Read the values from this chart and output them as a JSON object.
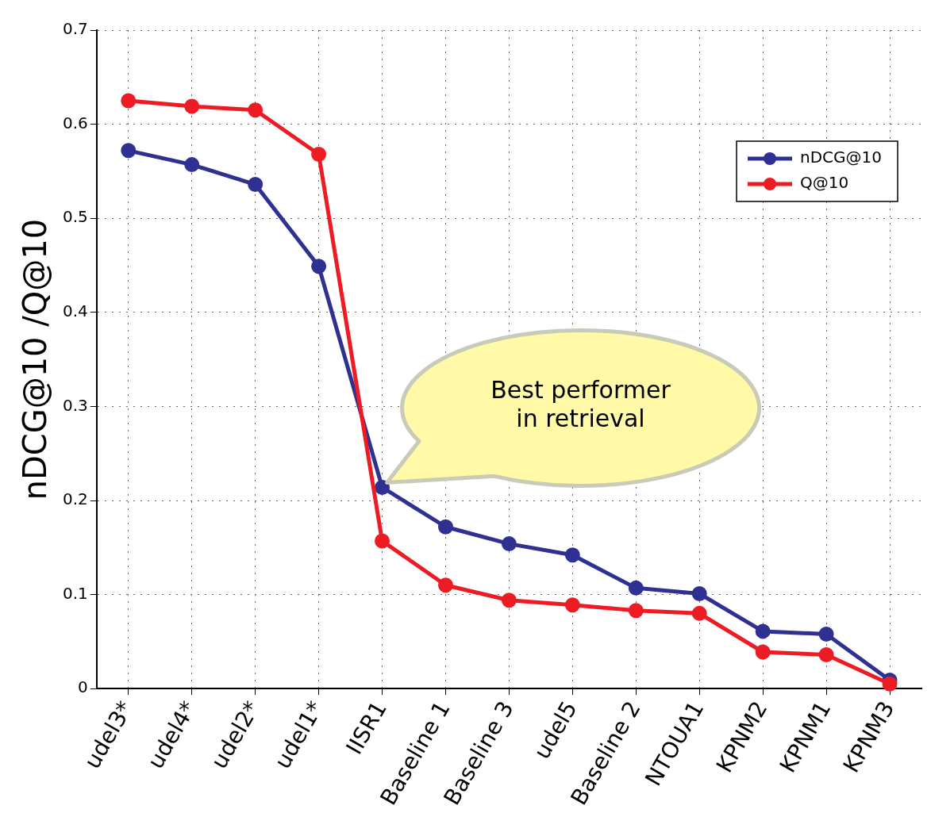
{
  "chart_data": {
    "type": "line",
    "ylabel": "nDCG@10 /Q@10",
    "categories": [
      "udel3*",
      "udel4*",
      "udel2*",
      "udel1*",
      "IISR1",
      "Baseline 1",
      "Baseline 3",
      "udel5",
      "Baseline 2",
      "NTOUA1",
      "KPNM2",
      "KPNM1",
      "KPNM3"
    ],
    "series": [
      {
        "name": "nDCG@10",
        "color": "#2e3192",
        "values": [
          0.572,
          0.557,
          0.536,
          0.449,
          0.214,
          0.172,
          0.154,
          0.142,
          0.107,
          0.101,
          0.061,
          0.058,
          0.009
        ]
      },
      {
        "name": "Q@10",
        "color": "#ed1c24",
        "values": [
          0.625,
          0.619,
          0.615,
          0.568,
          0.157,
          0.11,
          0.094,
          0.089,
          0.083,
          0.08,
          0.039,
          0.036,
          0.005
        ]
      }
    ],
    "ylim": [
      0,
      0.7
    ],
    "yticks": [
      0,
      0.1,
      0.2,
      0.3,
      0.4,
      0.5,
      0.6,
      0.7
    ],
    "grid": true,
    "legend": "top right",
    "marker": "circle",
    "line_style": "solid",
    "annotations": [
      {
        "text": "Best performer in retrieval",
        "x": "IISR1",
        "y": 0.214
      }
    ]
  }
}
